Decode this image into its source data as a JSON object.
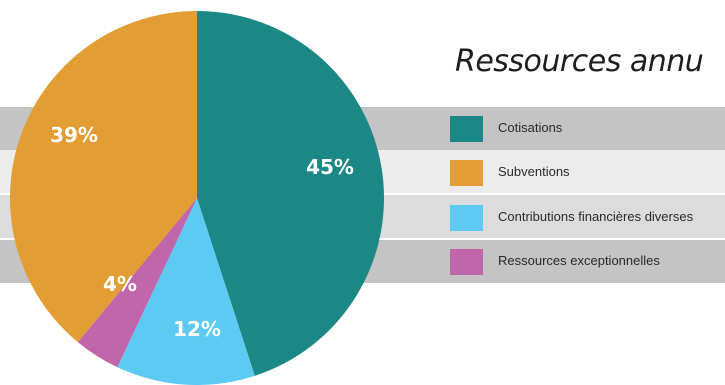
{
  "chart_data": {
    "type": "pie",
    "title": "Ressources annu",
    "slices": [
      {
        "label": "Cotisations",
        "value": 45,
        "display": "45%",
        "color": "#1b8886"
      },
      {
        "label": "Contributions financières diverses",
        "value": 12,
        "display": "12%",
        "color": "#5ccaf3"
      },
      {
        "label": "Ressources exceptionnelles",
        "value": 4,
        "display": "4%",
        "color": "#c266ab"
      },
      {
        "label": "Subventions",
        "value": 39,
        "display": "39%",
        "color": "#e29d34"
      }
    ],
    "legend": [
      {
        "label": "Cotisations",
        "color": "#1b8886"
      },
      {
        "label": "Subventions",
        "color": "#e29d34"
      },
      {
        "label": "Contributions financières diverses",
        "color": "#5ccaf3"
      },
      {
        "label": "Ressources exceptionnelles",
        "color": "#c266ab"
      }
    ],
    "legend_placement": "right"
  },
  "bands": {
    "colors": [
      "#c4c4c4",
      "#ececec",
      "#dcdcdc",
      "#c4c4c4"
    ]
  }
}
